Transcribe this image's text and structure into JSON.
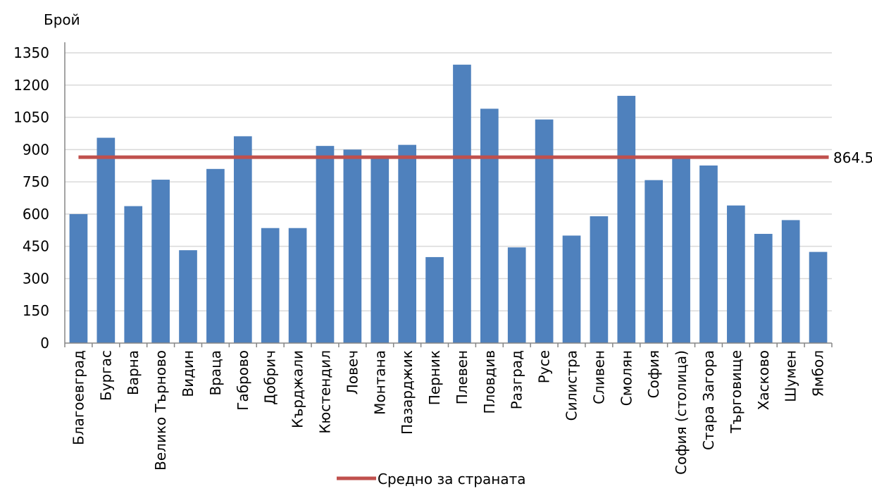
{
  "chart_data": {
    "type": "bar",
    "ylabel": "Брой",
    "ylim": [
      0,
      1350
    ],
    "yticks": [
      "0",
      "150",
      "300",
      "450",
      "600",
      "750",
      "900",
      "1050",
      "1200",
      "1350"
    ],
    "grid": true,
    "categories": [
      "Благоевград",
      "Бургас",
      "Варна",
      "Велико Търново",
      "Видин",
      "Враца",
      "Габрово",
      "Добрич",
      "Кърджали",
      "Кюстендил",
      "Ловеч",
      "Монтана",
      "Пазарджик",
      "Перник",
      "Плевен",
      "Пловдив",
      "Разград",
      "Русе",
      "Силистра",
      "Сливен",
      "Смолян",
      "София",
      "София (столица)",
      "Стара Загора",
      "Търговище",
      "Хасково",
      "Шумен",
      "Ямбол"
    ],
    "values": [
      600,
      955,
      637,
      760,
      432,
      810,
      962,
      535,
      535,
      917,
      900,
      870,
      922,
      400,
      1295,
      1090,
      445,
      1040,
      500,
      590,
      1150,
      758,
      870,
      826,
      640,
      508,
      572,
      424
    ],
    "bar_color": "#4f81bd",
    "reference_line": {
      "name": "Средно за страната",
      "value": 864.5,
      "label": "864.5",
      "color": "#c0504d"
    },
    "legend_position": "bottom"
  }
}
